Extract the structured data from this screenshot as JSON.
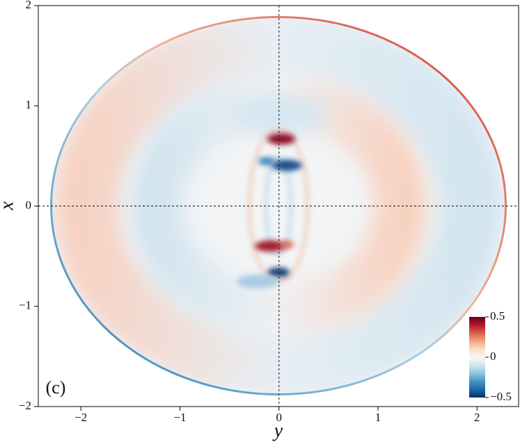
{
  "chart_data": {
    "type": "heatmap",
    "xlabel": "y",
    "ylabel": "x",
    "annotation": "(c)",
    "xlim": [
      -2.43,
      2.42
    ],
    "ylim": [
      -2,
      2
    ],
    "xticks": [
      {
        "value": -2,
        "label": "−2"
      },
      {
        "value": -1,
        "label": "−1"
      },
      0,
      1,
      2
    ],
    "yticks": [
      {
        "value": -2,
        "label": "−2"
      },
      {
        "value": -1,
        "label": "−1"
      },
      0,
      1,
      2
    ],
    "reference_lines": {
      "x": 0,
      "y": 0
    },
    "colorbar": {
      "lim": [
        -0.5,
        0.5
      ],
      "ticks": [
        {
          "value": -0.5,
          "label": "−0.5"
        },
        0,
        0.5
      ],
      "colors": [
        "#053061",
        "#2166ac",
        "#4393c3",
        "#92c5de",
        "#d1e5f0",
        "#f7f7f7",
        "#fddbc7",
        "#f4a582",
        "#d6604d",
        "#b2182b",
        "#67001f"
      ]
    }
  }
}
